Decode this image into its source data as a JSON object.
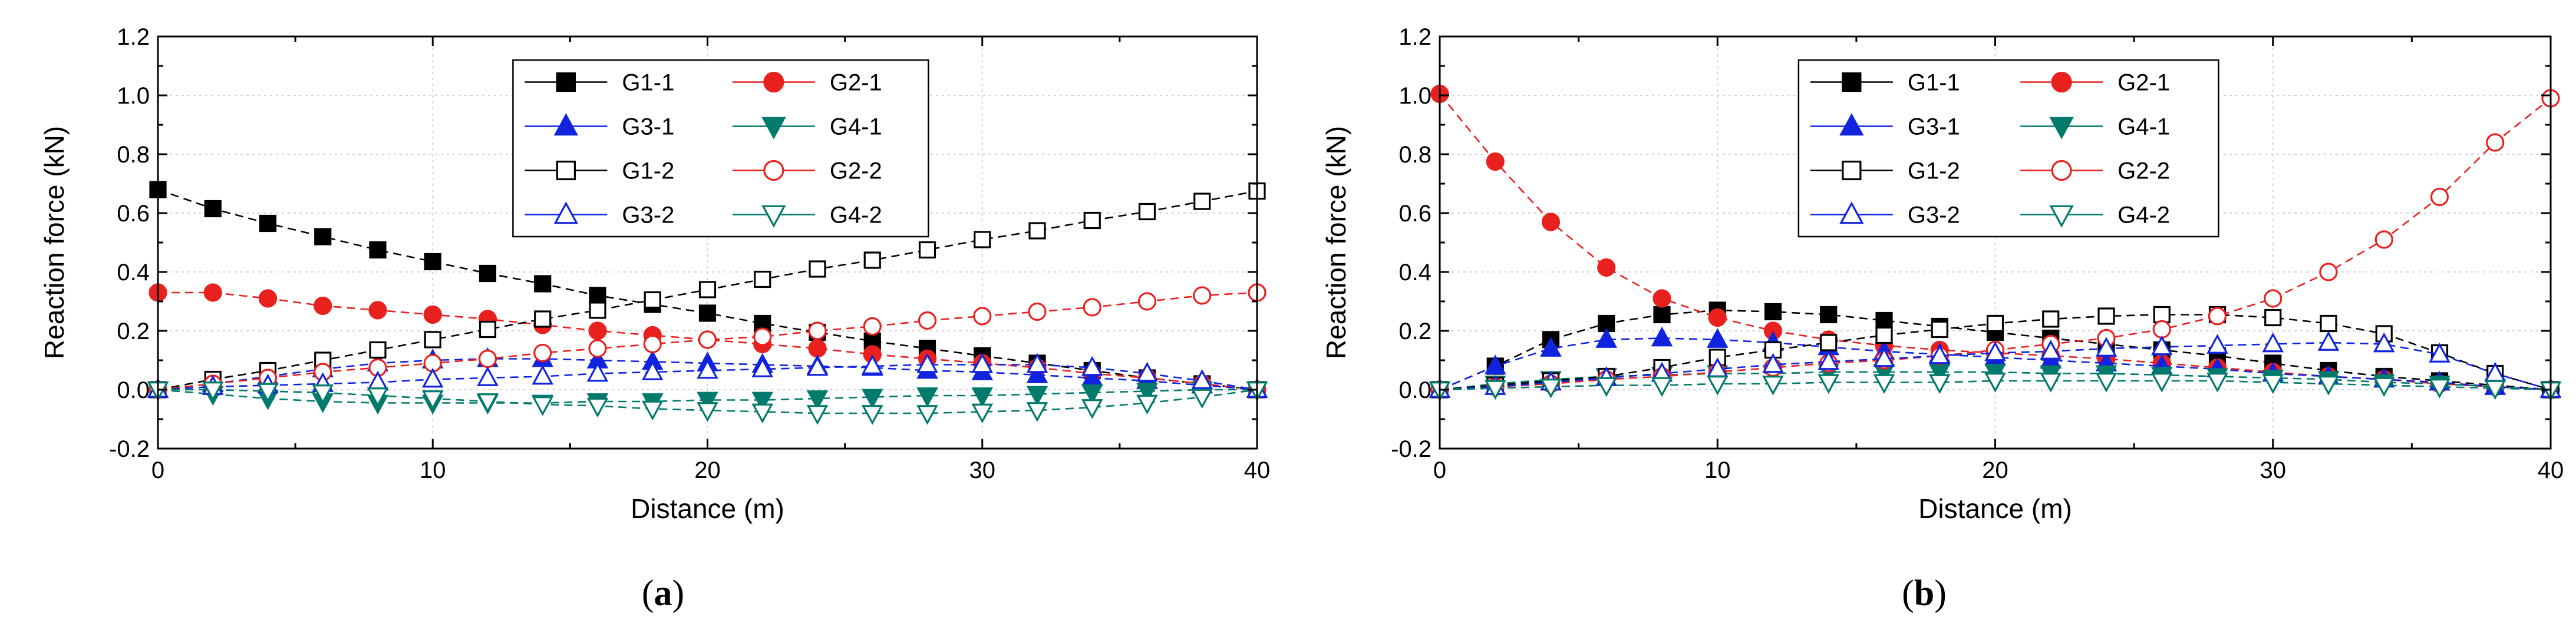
{
  "figure": {
    "panels": [
      {
        "caption_open": "(",
        "caption_letter": "a",
        "caption_close": ")"
      },
      {
        "caption_open": "(",
        "caption_letter": "b",
        "caption_close": ")"
      }
    ]
  },
  "chart_data": [
    {
      "type": "line",
      "panel": "a",
      "title": "",
      "xlabel": "Distance (m)",
      "ylabel": "Reaction force (kN)",
      "xlim": [
        0,
        40
      ],
      "ylim": [
        -0.2,
        1.2
      ],
      "xticks": [
        0,
        10,
        20,
        30,
        40
      ],
      "yticks": [
        -0.2,
        0.0,
        0.2,
        0.4,
        0.6,
        0.8,
        1.0,
        1.2
      ],
      "grid": true,
      "legend_position": "top-center",
      "x": [
        0,
        2,
        4,
        6,
        8,
        10,
        12,
        14,
        16,
        18,
        20,
        22,
        24,
        26,
        28,
        30,
        32,
        34,
        36,
        38,
        40
      ],
      "series": [
        {
          "name": "G1-1",
          "color": "#000000",
          "marker": "square",
          "filled": true,
          "values": [
            0.68,
            0.615,
            0.565,
            0.52,
            0.475,
            0.435,
            0.395,
            0.36,
            0.32,
            0.29,
            0.26,
            0.225,
            0.195,
            0.165,
            0.14,
            0.115,
            0.09,
            0.065,
            0.04,
            0.02,
            0.0
          ]
        },
        {
          "name": "G2-1",
          "color": "#e8211f",
          "marker": "circle",
          "filled": true,
          "values": [
            0.33,
            0.33,
            0.31,
            0.285,
            0.27,
            0.255,
            0.24,
            0.22,
            0.2,
            0.185,
            0.17,
            0.155,
            0.14,
            0.12,
            0.105,
            0.09,
            0.075,
            0.055,
            0.04,
            0.02,
            0.0
          ]
        },
        {
          "name": "G3-1",
          "color": "#1024e0",
          "marker": "triangle-up",
          "filled": true,
          "values": [
            0.0,
            0.02,
            0.045,
            0.07,
            0.09,
            0.1,
            0.105,
            0.105,
            0.1,
            0.095,
            0.09,
            0.085,
            0.08,
            0.075,
            0.065,
            0.06,
            0.05,
            0.04,
            0.03,
            0.015,
            0.0
          ]
        },
        {
          "name": "G4-1",
          "color": "#007a6a",
          "marker": "triangle-down",
          "filled": true,
          "values": [
            0.0,
            -0.015,
            -0.03,
            -0.04,
            -0.045,
            -0.045,
            -0.045,
            -0.045,
            -0.04,
            -0.04,
            -0.035,
            -0.035,
            -0.03,
            -0.025,
            -0.02,
            -0.02,
            -0.015,
            -0.01,
            -0.005,
            0.0,
            0.0
          ]
        },
        {
          "name": "G1-2",
          "color": "#000000",
          "marker": "square",
          "filled": false,
          "values": [
            0.0,
            0.035,
            0.065,
            0.1,
            0.135,
            0.17,
            0.205,
            0.24,
            0.27,
            0.305,
            0.34,
            0.375,
            0.41,
            0.44,
            0.475,
            0.51,
            0.54,
            0.575,
            0.605,
            0.64,
            0.675
          ]
        },
        {
          "name": "G2-2",
          "color": "#e8211f",
          "marker": "circle",
          "filled": false,
          "values": [
            0.0,
            0.02,
            0.04,
            0.06,
            0.075,
            0.09,
            0.105,
            0.125,
            0.14,
            0.155,
            0.17,
            0.18,
            0.2,
            0.215,
            0.235,
            0.25,
            0.265,
            0.28,
            0.3,
            0.32,
            0.33
          ]
        },
        {
          "name": "G3-2",
          "color": "#1024e0",
          "marker": "triangle-up",
          "filled": false,
          "values": [
            0.0,
            0.01,
            0.015,
            0.02,
            0.025,
            0.035,
            0.04,
            0.045,
            0.055,
            0.06,
            0.065,
            0.07,
            0.075,
            0.08,
            0.085,
            0.085,
            0.085,
            0.075,
            0.055,
            0.03,
            0.0
          ]
        },
        {
          "name": "G4-2",
          "color": "#007a6a",
          "marker": "triangle-down",
          "filled": false,
          "values": [
            0.0,
            0.0,
            -0.005,
            -0.01,
            -0.02,
            -0.03,
            -0.04,
            -0.05,
            -0.055,
            -0.065,
            -0.07,
            -0.075,
            -0.08,
            -0.08,
            -0.08,
            -0.075,
            -0.07,
            -0.06,
            -0.045,
            -0.025,
            0.0
          ]
        }
      ]
    },
    {
      "type": "line",
      "panel": "b",
      "title": "",
      "xlabel": "Distance (m)",
      "ylabel": "Reaction force (kN)",
      "xlim": [
        0,
        40
      ],
      "ylim": [
        -0.2,
        1.2
      ],
      "xticks": [
        0,
        10,
        20,
        30,
        40
      ],
      "yticks": [
        -0.2,
        0.0,
        0.2,
        0.4,
        0.6,
        0.8,
        1.0,
        1.2
      ],
      "grid": true,
      "legend_position": "top-center",
      "x": [
        0,
        2,
        4,
        6,
        8,
        10,
        12,
        14,
        16,
        18,
        20,
        22,
        24,
        26,
        28,
        30,
        32,
        34,
        36,
        38,
        40
      ],
      "series": [
        {
          "name": "G1-1",
          "color": "#000000",
          "marker": "square",
          "filled": true,
          "values": [
            0.0,
            0.08,
            0.17,
            0.225,
            0.255,
            0.27,
            0.265,
            0.255,
            0.235,
            0.215,
            0.195,
            0.175,
            0.155,
            0.135,
            0.115,
            0.09,
            0.065,
            0.045,
            0.03,
            0.015,
            0.0
          ]
        },
        {
          "name": "G2-1",
          "color": "#e8211f",
          "marker": "circle",
          "filled": true,
          "values": [
            1.005,
            0.775,
            0.57,
            0.415,
            0.31,
            0.245,
            0.2,
            0.17,
            0.15,
            0.135,
            0.125,
            0.115,
            0.105,
            0.09,
            0.075,
            0.06,
            0.045,
            0.035,
            0.02,
            0.01,
            0.0
          ]
        },
        {
          "name": "G3-1",
          "color": "#1024e0",
          "marker": "triangle-up",
          "filled": true,
          "values": [
            0.0,
            0.08,
            0.14,
            0.17,
            0.175,
            0.17,
            0.16,
            0.145,
            0.13,
            0.12,
            0.11,
            0.1,
            0.09,
            0.08,
            0.07,
            0.055,
            0.045,
            0.035,
            0.025,
            0.01,
            0.0
          ]
        },
        {
          "name": "G4-1",
          "color": "#007a6a",
          "marker": "triangle-down",
          "filled": true,
          "values": [
            0.0,
            0.02,
            0.035,
            0.045,
            0.05,
            0.055,
            0.055,
            0.06,
            0.06,
            0.06,
            0.06,
            0.055,
            0.055,
            0.05,
            0.045,
            0.04,
            0.035,
            0.025,
            0.02,
            0.01,
            0.0
          ]
        },
        {
          "name": "G1-2",
          "color": "#000000",
          "marker": "square",
          "filled": false,
          "values": [
            0.0,
            0.015,
            0.03,
            0.045,
            0.075,
            0.11,
            0.135,
            0.16,
            0.185,
            0.205,
            0.225,
            0.24,
            0.25,
            0.255,
            0.255,
            0.245,
            0.225,
            0.19,
            0.125,
            0.055,
            0.0
          ]
        },
        {
          "name": "G2-2",
          "color": "#e8211f",
          "marker": "circle",
          "filled": false,
          "values": [
            0.0,
            0.01,
            0.02,
            0.035,
            0.045,
            0.06,
            0.075,
            0.09,
            0.1,
            0.115,
            0.135,
            0.155,
            0.175,
            0.205,
            0.25,
            0.31,
            0.4,
            0.51,
            0.655,
            0.84,
            0.99
          ]
        },
        {
          "name": "G3-2",
          "color": "#1024e0",
          "marker": "triangle-up",
          "filled": false,
          "values": [
            0.0,
            0.01,
            0.025,
            0.04,
            0.055,
            0.07,
            0.085,
            0.095,
            0.105,
            0.115,
            0.125,
            0.13,
            0.14,
            0.145,
            0.15,
            0.155,
            0.16,
            0.155,
            0.12,
            0.055,
            0.0
          ]
        },
        {
          "name": "G4-2",
          "color": "#007a6a",
          "marker": "triangle-down",
          "filled": false,
          "values": [
            0.0,
            0.005,
            0.01,
            0.015,
            0.015,
            0.02,
            0.02,
            0.025,
            0.025,
            0.025,
            0.03,
            0.03,
            0.03,
            0.03,
            0.03,
            0.025,
            0.02,
            0.015,
            0.01,
            0.005,
            0.0
          ]
        }
      ]
    }
  ]
}
